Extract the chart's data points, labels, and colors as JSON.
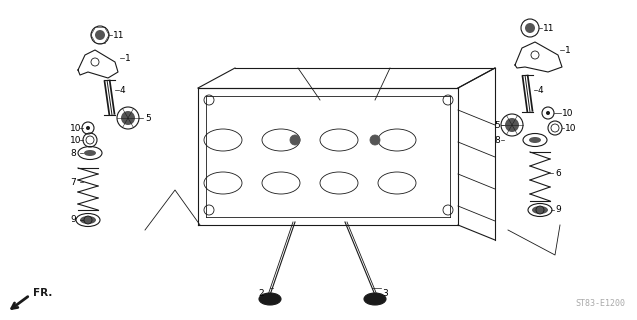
{
  "bg_color": "#ffffff",
  "line_color": "#1a1a1a",
  "gray_color": "#555555",
  "label_color": "#000000",
  "fig_width": 6.37,
  "fig_height": 3.2,
  "dpi": 100,
  "watermark": "ST83-E1200",
  "fr_label": "FR."
}
